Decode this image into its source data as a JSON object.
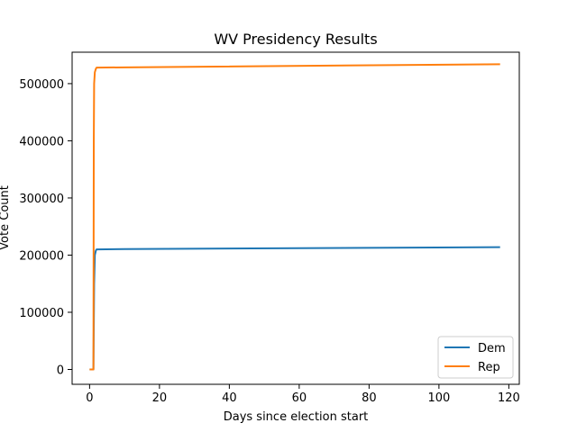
{
  "chart_data": {
    "type": "line",
    "title": "WV Presidency Results",
    "xlabel": "Days since election start",
    "ylabel": "Vote Count",
    "xlim": [
      -5,
      123
    ],
    "ylim": [
      -26000,
      555000
    ],
    "xticks": [
      0,
      20,
      40,
      60,
      80,
      100,
      120
    ],
    "yticks": [
      0,
      100000,
      200000,
      300000,
      400000,
      500000
    ],
    "grid": false,
    "legend_position": "lower-right",
    "series": [
      {
        "name": "Dem",
        "color": "#1f77b4",
        "points": [
          [
            0,
            0
          ],
          [
            1.1,
            0
          ],
          [
            1.3,
            150000
          ],
          [
            1.5,
            200000
          ],
          [
            1.8,
            208000
          ],
          [
            2,
            210000
          ],
          [
            10,
            210500
          ],
          [
            117.5,
            214000
          ]
        ]
      },
      {
        "name": "Rep",
        "color": "#ff7f0e",
        "points": [
          [
            0,
            0
          ],
          [
            1.1,
            0
          ],
          [
            1.2,
            400000
          ],
          [
            1.3,
            500000
          ],
          [
            1.5,
            520000
          ],
          [
            1.8,
            526000
          ],
          [
            2,
            528000
          ],
          [
            10,
            528500
          ],
          [
            117.5,
            534000
          ]
        ]
      }
    ]
  }
}
